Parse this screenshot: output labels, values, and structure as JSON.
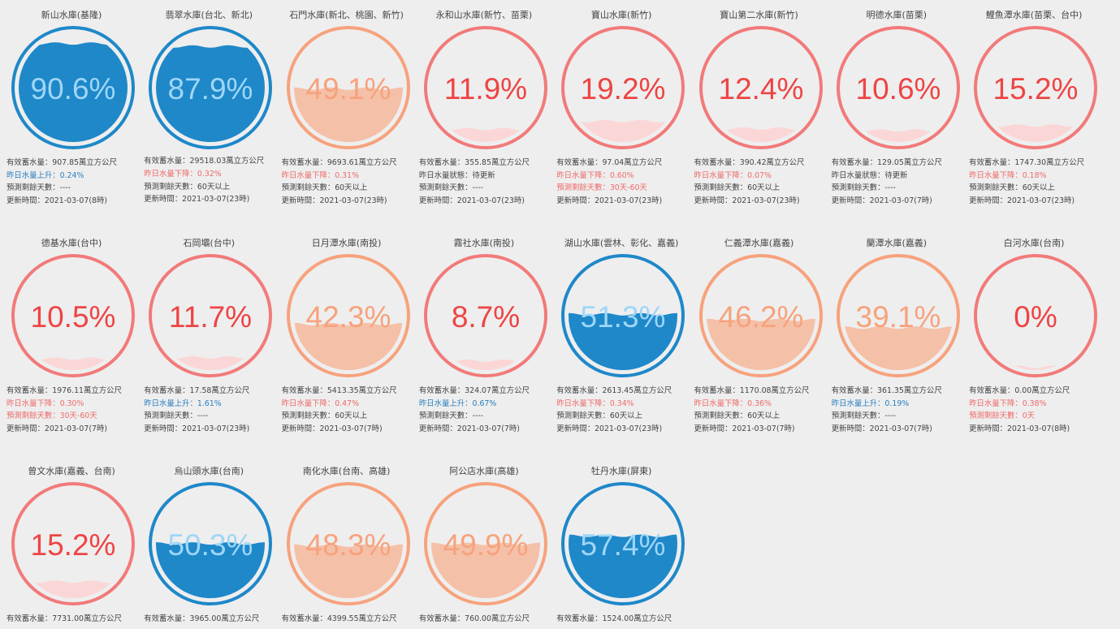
{
  "labels": {
    "storage": "有效蓄水量：",
    "unit": "萬立方公尺",
    "days": "預測剩餘天數：",
    "update": "更新時間："
  },
  "colors": {
    "blue": "#1e88c9",
    "blue_text": "#9fd6f7",
    "orange": "#f7a27d",
    "orange_fill": "#f5c0a8",
    "orange_text": "#f7a27d",
    "red": "#f27a7a",
    "red_fill": "#fbd6d6",
    "red_text": "#ee4444"
  },
  "reservoirs": [
    {
      "name": "新山水庫(基隆)",
      "pct": 90.6,
      "level": "blue",
      "storage": "907.85",
      "change": "昨日水量上升：0.24%",
      "change_dir": "up",
      "days": "----",
      "updated": "2021-03-07(8時)"
    },
    {
      "name": "翡翠水庫(台北、新北)",
      "pct": 87.9,
      "level": "blue",
      "storage": "29518.03",
      "change": "昨日水量下降：0.32%",
      "change_dir": "down",
      "days": "60天以上",
      "updated": "2021-03-07(23時)"
    },
    {
      "name": "石門水庫(新北、桃園、新竹)",
      "pct": 49.1,
      "level": "orange",
      "storage": "9693.61",
      "change": "昨日水量下降：0.31%",
      "change_dir": "down",
      "days": "60天以上",
      "updated": "2021-03-07(23時)"
    },
    {
      "name": "永和山水庫(新竹、苗栗)",
      "pct": 11.9,
      "level": "red",
      "storage": "355.85",
      "change": "昨日水量狀態：待更新",
      "change_dir": "none",
      "days": "----",
      "updated": "2021-03-07(23時)"
    },
    {
      "name": "寶山水庫(新竹)",
      "pct": 19.2,
      "level": "red",
      "storage": "97.04",
      "change": "昨日水量下降：0.60%",
      "change_dir": "down",
      "days": "30天-60天",
      "days_warn": true,
      "updated": "2021-03-07(23時)"
    },
    {
      "name": "寶山第二水庫(新竹)",
      "pct": 12.4,
      "level": "red",
      "storage": "390.42",
      "change": "昨日水量下降：0.07%",
      "change_dir": "down",
      "days": "60天以上",
      "updated": "2021-03-07(23時)"
    },
    {
      "name": "明德水庫(苗栗)",
      "pct": 10.6,
      "level": "red",
      "storage": "129.05",
      "change": "昨日水量狀態：待更新",
      "change_dir": "none",
      "days": "----",
      "updated": "2021-03-07(7時)"
    },
    {
      "name": "鯉魚潭水庫(苗栗、台中)",
      "pct": 15.2,
      "level": "red",
      "storage": "1747.30",
      "change": "昨日水量下降：0.18%",
      "change_dir": "down",
      "days": "60天以上",
      "updated": "2021-03-07(23時)"
    },
    {
      "name": "德基水庫(台中)",
      "pct": 10.5,
      "level": "red",
      "storage": "1976.11",
      "change": "昨日水量下降：0.30%",
      "change_dir": "down",
      "days": "30天-60天",
      "days_warn": true,
      "updated": "2021-03-07(7時)"
    },
    {
      "name": "石岡壩(台中)",
      "pct": 11.7,
      "level": "red",
      "storage": "17.58",
      "change": "昨日水量上升：1.61%",
      "change_dir": "up",
      "days": "----",
      "updated": "2021-03-07(23時)"
    },
    {
      "name": "日月潭水庫(南投)",
      "pct": 42.3,
      "level": "orange",
      "storage": "5413.35",
      "change": "昨日水量下降：0.47%",
      "change_dir": "down",
      "days": "60天以上",
      "updated": "2021-03-07(7時)"
    },
    {
      "name": "霧社水庫(南投)",
      "pct": 8.7,
      "level": "red",
      "storage": "324.07",
      "change": "昨日水量上升：0.67%",
      "change_dir": "up",
      "days": "----",
      "updated": "2021-03-07(7時)"
    },
    {
      "name": "湖山水庫(雲林、彰化、嘉義)",
      "pct": 51.3,
      "level": "blue",
      "storage": "2613.45",
      "change": "昨日水量下降：0.34%",
      "change_dir": "down",
      "days": "60天以上",
      "updated": "2021-03-07(23時)"
    },
    {
      "name": "仁義潭水庫(嘉義)",
      "pct": 46.2,
      "level": "orange",
      "storage": "1170.08",
      "change": "昨日水量下降：0.36%",
      "change_dir": "down",
      "days": "60天以上",
      "updated": "2021-03-07(7時)"
    },
    {
      "name": "蘭潭水庫(嘉義)",
      "pct": 39.1,
      "level": "orange",
      "storage": "361.35",
      "change": "昨日水量上升：0.19%",
      "change_dir": "up",
      "days": "----",
      "updated": "2021-03-07(7時)"
    },
    {
      "name": "白河水庫(台南)",
      "pct": 0,
      "level": "red",
      "storage": "0.00",
      "change": "昨日水量下降：0.38%",
      "change_dir": "down",
      "days": "0天",
      "days_warn": true,
      "updated": "2021-03-07(8時)"
    },
    {
      "name": "曾文水庫(嘉義、台南)",
      "pct": 15.2,
      "level": "red",
      "storage": "7731.00",
      "change": "",
      "change_dir": "none",
      "days": "",
      "updated": ""
    },
    {
      "name": "烏山頭水庫(台南)",
      "pct": 50.3,
      "level": "blue",
      "storage": "3965.00",
      "change": "",
      "change_dir": "none",
      "days": "",
      "updated": ""
    },
    {
      "name": "南化水庫(台南、高雄)",
      "pct": 48.3,
      "level": "orange",
      "storage": "4399.55",
      "change": "",
      "change_dir": "none",
      "days": "",
      "updated": ""
    },
    {
      "name": "阿公店水庫(高雄)",
      "pct": 49.9,
      "level": "orange",
      "storage": "760.00",
      "change": "",
      "change_dir": "none",
      "days": "",
      "updated": ""
    },
    {
      "name": "牡丹水庫(屏東)",
      "pct": 57.4,
      "level": "blue",
      "storage": "1524.00",
      "change": "",
      "change_dir": "none",
      "days": "",
      "updated": ""
    }
  ]
}
